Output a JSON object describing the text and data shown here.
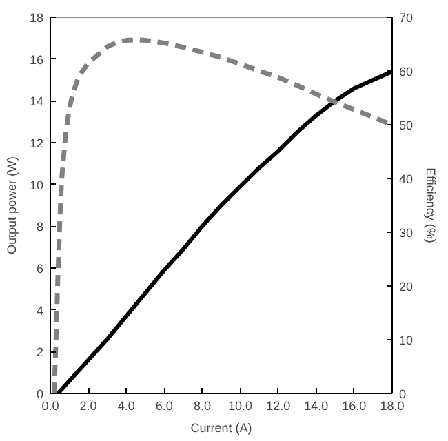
{
  "chart_data": {
    "type": "line",
    "xlabel": "Current (A)",
    "ylabel": "Output power (W)",
    "y2label": "Efficiency (%)",
    "xlim": [
      0,
      18
    ],
    "xticks": [
      {
        "value": 0,
        "label": "0.0"
      },
      {
        "value": 2,
        "label": "2.0"
      },
      {
        "value": 4,
        "label": "4.0"
      },
      {
        "value": 6,
        "label": "6.0"
      },
      {
        "value": 8,
        "label": "8.0"
      },
      {
        "value": 10,
        "label": "10.0"
      },
      {
        "value": 12,
        "label": "12.0"
      },
      {
        "value": 14,
        "label": "14.0"
      },
      {
        "value": 16,
        "label": "16.0"
      },
      {
        "value": 18,
        "label": "18.0"
      }
    ],
    "ylim": [
      0,
      18
    ],
    "yticks": [
      0,
      2,
      4,
      6,
      8,
      10,
      12,
      14,
      16,
      18
    ],
    "y2lim": [
      0,
      70
    ],
    "y2ticks": [
      0,
      10,
      20,
      30,
      40,
      50,
      60,
      70
    ],
    "grid": false,
    "series": [
      {
        "color": "#000000",
        "line_style": "solid",
        "x": [
          0.4,
          1,
          2,
          3,
          4,
          5,
          6,
          7,
          8,
          9,
          10,
          11,
          12,
          13,
          14,
          15,
          16,
          17,
          18
        ],
        "values": [
          0,
          0.6,
          1.6,
          2.6,
          3.7,
          4.8,
          5.9,
          6.9,
          8.0,
          9.0,
          9.9,
          10.8,
          11.6,
          12.5,
          13.3,
          14.0,
          14.6,
          15.0,
          15.4
        ]
      },
      {
        "color": "#808080",
        "line_style": "dashed",
        "axis": "y2",
        "x": [
          0.2,
          0.3,
          0.4,
          0.5,
          0.6,
          0.8,
          1.0,
          1.2,
          1.5,
          2,
          2.5,
          3,
          3.5,
          4,
          4.5,
          5,
          6,
          7,
          8,
          9,
          10,
          11,
          12,
          13,
          14,
          15,
          16,
          17,
          18
        ],
        "values": [
          0,
          10,
          22,
          32,
          40,
          48,
          53,
          56,
          59,
          61.5,
          63,
          64.5,
          65.3,
          65.7,
          65.8,
          65.7,
          65.2,
          64.4,
          63.5,
          62.5,
          61.3,
          60,
          58.8,
          57.3,
          55.7,
          54.2,
          52.8,
          51.4,
          50
        ]
      }
    ]
  }
}
